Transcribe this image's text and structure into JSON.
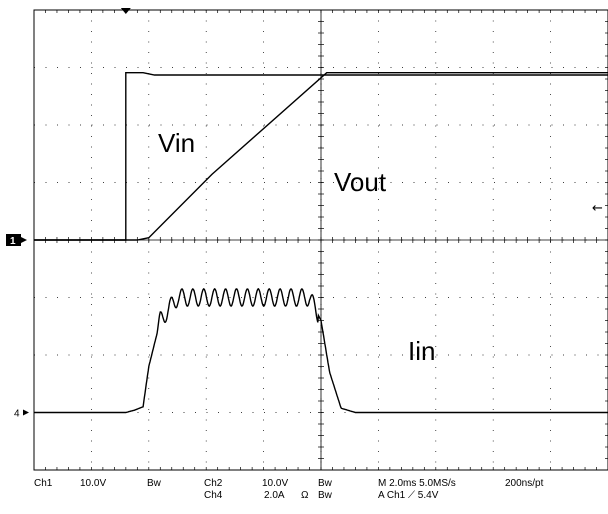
{
  "chart_data": {
    "type": "line",
    "instrument": "oscilloscope",
    "grid": true,
    "time_units": "ms",
    "x_range": [
      0,
      20
    ],
    "divisions": {
      "horizontal": 10,
      "vertical": 8
    },
    "trigger_time_ms": 3.2,
    "channels": [
      {
        "id": "1",
        "marker": "1",
        "label": "Vin",
        "volts_per_div": 10.0,
        "ground_div": 4.0,
        "points": [
          [
            0,
            0
          ],
          [
            3.2,
            0
          ],
          [
            3.2,
            29.1
          ],
          [
            3.8,
            29.1
          ],
          [
            4.2,
            28.7
          ],
          [
            20,
            28.7
          ]
        ]
      },
      {
        "id": "2",
        "label": "Vout",
        "volts_per_div": 10.0,
        "ground_div": 4.0,
        "points": [
          [
            0,
            0
          ],
          [
            3.6,
            0
          ],
          [
            4.0,
            0.4
          ],
          [
            6.2,
            11.4
          ],
          [
            10.2,
            29.1
          ],
          [
            20,
            29.1
          ]
        ]
      },
      {
        "id": "4",
        "marker": "4",
        "label": "Iin",
        "amps_per_div": 2.0,
        "ground_div": 1.0,
        "ripple": {
          "start_ms": 4.3,
          "end_ms": 9.9,
          "period_ms": 0.38,
          "amplitude_a": 0.3
        },
        "points": [
          [
            0,
            0
          ],
          [
            3.2,
            0
          ],
          [
            3.5,
            0.08
          ],
          [
            3.8,
            0.2
          ],
          [
            4.0,
            1.6
          ],
          [
            4.4,
            3.2
          ],
          [
            5.0,
            4.0
          ],
          [
            9.6,
            4.0
          ],
          [
            10.0,
            3.2
          ],
          [
            10.3,
            1.4
          ],
          [
            10.7,
            0.15
          ],
          [
            11.2,
            0
          ],
          [
            20,
            0
          ]
        ]
      }
    ],
    "right_marker": "←"
  },
  "status": {
    "ch1_label": "Ch1",
    "ch1_scale": "10.0V",
    "ch1_bw": "Bw",
    "ch2_label": "Ch2",
    "ch2_scale": "10.0V",
    "ch2_bw": "Bw",
    "ch4_label": "Ch4",
    "ch4_scale": "2.0A",
    "ch4_ohm": "Ω",
    "ch4_bw": "Bw",
    "timebase": "M 2.0ms 5.0MS/s",
    "resolution": "200ns/pt",
    "trigger": "A  Ch1  ⟋  5.4V"
  }
}
